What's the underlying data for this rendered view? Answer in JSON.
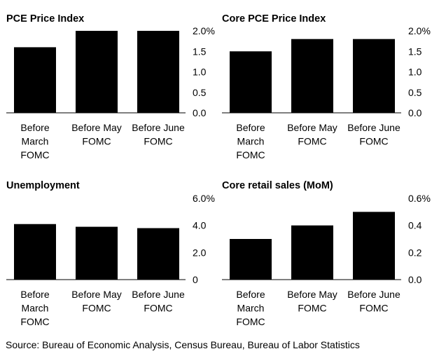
{
  "chart_data": [
    {
      "type": "bar",
      "title": "PCE Price Index",
      "categories": [
        "Before March FOMC",
        "Before May FOMC",
        "Before June FOMC"
      ],
      "values": [
        1.6,
        2.0,
        2.0
      ],
      "yticks": [
        "2.0%",
        "1.5",
        "1.0",
        "0.5",
        "0.0"
      ],
      "ylim": [
        0,
        2.0
      ],
      "grid": false,
      "bar_color": "#000000"
    },
    {
      "type": "bar",
      "title": "Core PCE Price Index",
      "categories": [
        "Before March FOMC",
        "Before May FOMC",
        "Before June FOMC"
      ],
      "values": [
        1.5,
        1.8,
        1.8
      ],
      "yticks": [
        "2.0%",
        "1.5",
        "1.0",
        "0.5",
        "0.0"
      ],
      "ylim": [
        0,
        2.0
      ],
      "grid": false,
      "bar_color": "#000000"
    },
    {
      "type": "bar",
      "title": "Unemployment",
      "categories": [
        "Before March FOMC",
        "Before May FOMC",
        "Before June FOMC"
      ],
      "values": [
        4.1,
        3.9,
        3.8
      ],
      "yticks": [
        "6.0%",
        "4.0",
        "2.0",
        "0"
      ],
      "ylim": [
        0,
        6.0
      ],
      "grid": false,
      "bar_color": "#000000"
    },
    {
      "type": "bar",
      "title": "Core retail sales (MoM)",
      "categories": [
        "Before March FOMC",
        "Before May FOMC",
        "Before June FOMC"
      ],
      "values": [
        0.3,
        0.4,
        0.5
      ],
      "yticks": [
        "0.6%",
        "0.4",
        "0.2",
        "0.0"
      ],
      "ylim": [
        0,
        0.6
      ],
      "grid": false,
      "bar_color": "#000000"
    }
  ],
  "category_lines": [
    [
      "Before",
      "March",
      "FOMC"
    ],
    [
      "Before May",
      "FOMC"
    ],
    [
      "Before June",
      "FOMC"
    ]
  ],
  "source": "Source: Bureau of Economic Analysis, Census Bureau, Bureau of Labor Statistics"
}
